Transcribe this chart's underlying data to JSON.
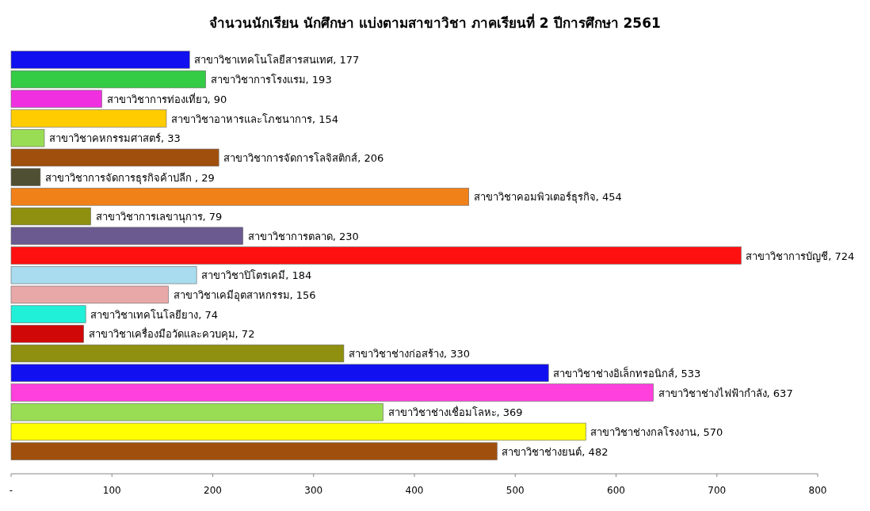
{
  "chart_data": {
    "type": "bar",
    "orientation": "horizontal",
    "title": "จำนวนนักเรียน นักศึกษา แบ่งตามสาขาวิชา ภาคเรียนที่ 2 ปีการศึกษา 2561",
    "categories": [
      null,
      null,
      null,
      null,
      null,
      null,
      null,
      null,
      null,
      null,
      null,
      null,
      null,
      null,
      null,
      null,
      null,
      null,
      null,
      null,
      null
    ],
    "values": [
      177,
      193,
      90,
      154,
      33,
      206,
      29,
      454,
      79,
      230,
      724,
      184,
      156,
      74,
      72,
      330,
      533,
      637,
      369,
      570,
      482
    ],
    "value_labels": [
      "สาขาวิชาเทคโนโลยีสารสนเทศ, 177",
      "สาขาวิชาการโรงแรม, 193",
      "สาขาวิชาการท่องเที่ยว, 90",
      "สาขาวิชาอาหารและโภชนาการ, 154",
      "สาขาวิชาคหกรรมศาสตร์, 33",
      "สาขาวิชาการจัดการโลจิสติกส์, 206",
      "สาขาวิชาการจัดการธุรกิจค้าปลีก , 29",
      "สาขาวิชาคอมพิวเตอร์ธุรกิจ, 454",
      "สาขาวิชาการเลขานุการ, 79",
      "สาขาวิชาการตลาด, 230",
      "สาขาวิชาการบัญชี, 724",
      "สาขาวิชาปิโตรเคมี, 184",
      "สาขาวิชาเคมีอุตสาหกรรม, 156",
      "สาขาวิชาเทคโนโลยียาง, 74",
      "สาขาวิชาเครื่องมือวัดและควบคุม, 72",
      "สาขาวิชาช่างก่อสร้าง, 330",
      "สาขาวิชาช่างอิเล็กทรอนิกส์, 533",
      "สาขาวิชาช่างไฟฟ้ากำลัง, 637",
      "สาขาวิชาช่างเชื่อมโลหะ, 369",
      "สาขาวิชาช่างกลโรงงาน, 570",
      "สาขาวิชาช่างยนต์, 482"
    ],
    "colors": [
      "#1010f0",
      "#33cc44",
      "#f030e0",
      "#ffcc00",
      "#99dd55",
      "#a0500c",
      "#4f4f33",
      "#f08018",
      "#8f8f10",
      "#6a5a90",
      "#ff1010",
      "#a8dcee",
      "#e8a8a8",
      "#20f0d8",
      "#d00808",
      "#8f8f10",
      "#1010f0",
      "#ff40dd",
      "#99dd55",
      "#ffff00",
      "#a0500c"
    ],
    "xlim": [
      0,
      800
    ],
    "xticks": [
      {
        "value": 0,
        "label": "-"
      },
      100,
      200,
      300,
      400,
      500,
      600,
      700,
      800
    ],
    "grid": false
  }
}
